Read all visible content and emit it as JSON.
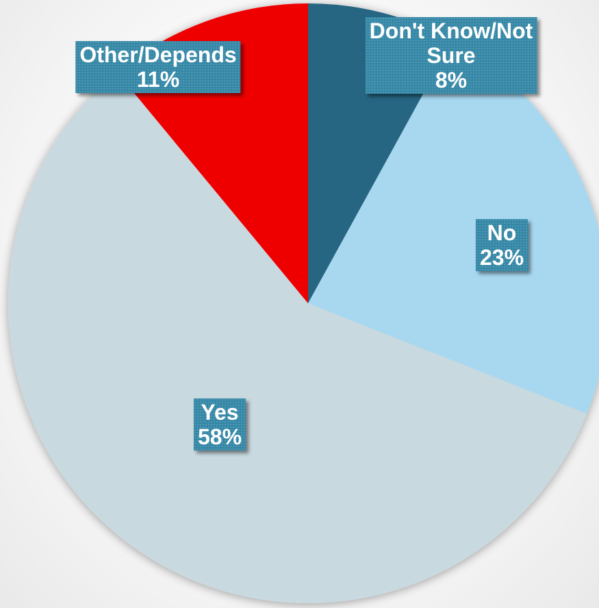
{
  "chart_data": {
    "type": "pie",
    "start_angle_deg": 0,
    "direction": "clockwise",
    "slices": [
      {
        "label": "Don't Know/Not Sure",
        "label_lines": [
          "Don't Know/Not",
          "Sure"
        ],
        "value": 8,
        "pct_label": "8%",
        "color": "#276682"
      },
      {
        "label": "No",
        "label_lines": [
          "No"
        ],
        "value": 23,
        "pct_label": "23%",
        "color": "#a7d8f0"
      },
      {
        "label": "Yes",
        "label_lines": [
          "Yes"
        ],
        "value": 58,
        "pct_label": "58%",
        "color": "#c9d9e0"
      },
      {
        "label": "Other/Depends",
        "label_lines": [
          "Other/Depends"
        ],
        "value": 11,
        "pct_label": "11%",
        "color": "#ef0000"
      }
    ],
    "label_style": {
      "background": "#3487a6",
      "text_color": "#ffffff"
    }
  }
}
